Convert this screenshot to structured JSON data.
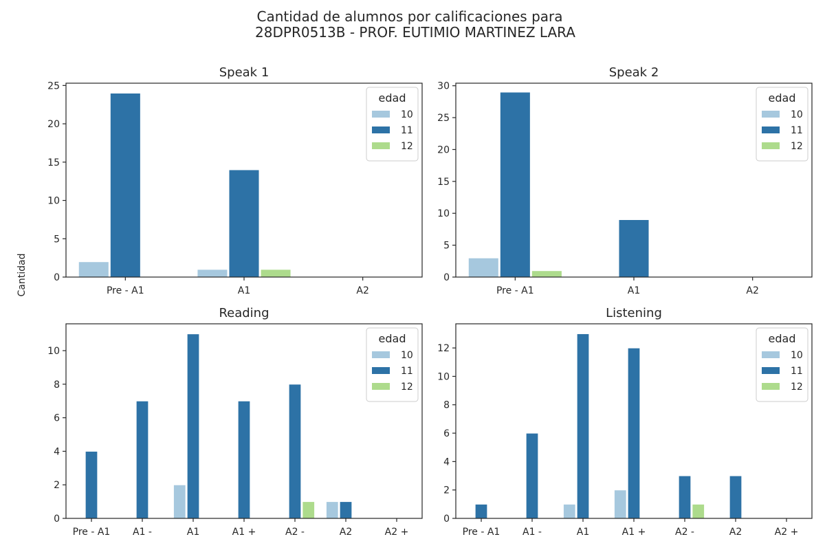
{
  "figure": {
    "title_line1": "Cantidad de alumnos por calificaciones para",
    "title_line2": "28DPR0513B - PROF. EUTIMIO MARTINEZ LARA",
    "shared_ylabel": "Cantidad"
  },
  "legend": {
    "title": "edad",
    "entries": [
      "10",
      "11",
      "12"
    ]
  },
  "colors": {
    "10": "#a6c8de",
    "11": "#2d72a6",
    "12": "#addb8c"
  },
  "chart_data": [
    {
      "type": "bar",
      "title": "Speak 1",
      "categories": [
        "Pre - A1",
        "A1",
        "A2"
      ],
      "series": [
        {
          "name": "10",
          "values": [
            2,
            1,
            0
          ]
        },
        {
          "name": "11",
          "values": [
            24,
            14,
            0
          ]
        },
        {
          "name": "12",
          "values": [
            0,
            1,
            0
          ]
        }
      ],
      "ylim": [
        0,
        25.3
      ],
      "yticks": [
        0,
        5,
        10,
        15,
        20,
        25
      ],
      "legend": "top-right"
    },
    {
      "type": "bar",
      "title": "Speak 2",
      "categories": [
        "Pre - A1",
        "A1",
        "A2"
      ],
      "series": [
        {
          "name": "10",
          "values": [
            3,
            0,
            0
          ]
        },
        {
          "name": "11",
          "values": [
            29,
            9,
            0
          ]
        },
        {
          "name": "12",
          "values": [
            1,
            0,
            0
          ]
        }
      ],
      "ylim": [
        0,
        30.4
      ],
      "yticks": [
        0,
        5,
        10,
        15,
        20,
        25,
        30
      ],
      "legend": "top-right"
    },
    {
      "type": "bar",
      "title": "Reading",
      "categories": [
        "Pre - A1",
        "A1 -",
        "A1",
        "A1 +",
        "A2 -",
        "A2",
        "A2 +"
      ],
      "series": [
        {
          "name": "10",
          "values": [
            0,
            0,
            2,
            0,
            0,
            1,
            0
          ]
        },
        {
          "name": "11",
          "values": [
            4,
            7,
            11,
            7,
            8,
            1,
            0
          ]
        },
        {
          "name": "12",
          "values": [
            0,
            0,
            0,
            0,
            1,
            0,
            0
          ]
        }
      ],
      "ylim": [
        0,
        11.6
      ],
      "yticks": [
        0,
        2,
        4,
        6,
        8,
        10
      ],
      "legend": "top-right"
    },
    {
      "type": "bar",
      "title": "Listening",
      "categories": [
        "Pre - A1",
        "A1 -",
        "A1",
        "A1 +",
        "A2 -",
        "A2",
        "A2 +"
      ],
      "series": [
        {
          "name": "10",
          "values": [
            0,
            0,
            1,
            2,
            0,
            0,
            0
          ]
        },
        {
          "name": "11",
          "values": [
            1,
            6,
            13,
            12,
            3,
            3,
            0
          ]
        },
        {
          "name": "12",
          "values": [
            0,
            0,
            0,
            0,
            1,
            0,
            0
          ]
        }
      ],
      "ylim": [
        0,
        13.7
      ],
      "yticks": [
        0,
        2,
        4,
        6,
        8,
        10,
        12
      ],
      "legend": "top-right"
    }
  ]
}
